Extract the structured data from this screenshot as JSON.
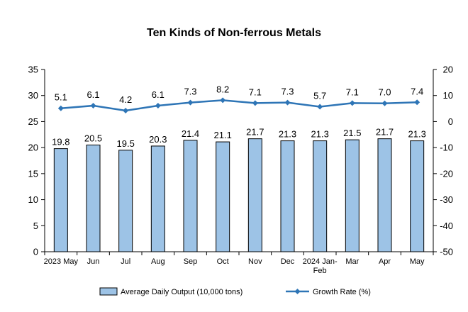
{
  "chart_data": {
    "type": "bar+line",
    "title": "Ten Kinds of Non-ferrous Metals",
    "categories": [
      [
        "2023 May"
      ],
      [
        "Jun"
      ],
      [
        "Jul"
      ],
      [
        "Aug"
      ],
      [
        "Sep"
      ],
      [
        "Oct"
      ],
      [
        "Nov"
      ],
      [
        "Dec"
      ],
      [
        "2024 Jan-",
        "Feb"
      ],
      [
        "Mar"
      ],
      [
        "Apr"
      ],
      [
        "May"
      ]
    ],
    "series": [
      {
        "name": "Average Daily Output (10,000 tons)",
        "type": "bar",
        "axis": "left",
        "values": [
          19.8,
          20.5,
          19.5,
          20.3,
          21.4,
          21.1,
          21.7,
          21.3,
          21.3,
          21.5,
          21.7,
          21.3
        ],
        "labels": [
          "19.8",
          "20.5",
          "19.5",
          "20.3",
          "21.4",
          "21.1",
          "21.7",
          "21.3",
          "21.3",
          "21.5",
          "21.7",
          "21.3"
        ],
        "color": "#9dc3e6",
        "stroke": "#000000"
      },
      {
        "name": "Growth Rate (%)",
        "type": "line",
        "axis": "right",
        "values": [
          5.1,
          6.1,
          4.2,
          6.1,
          7.3,
          8.2,
          7.1,
          7.3,
          5.7,
          7.1,
          7.0,
          7.4
        ],
        "labels": [
          "5.1",
          "6.1",
          "4.2",
          "6.1",
          "7.3",
          "8.2",
          "7.1",
          "7.3",
          "5.7",
          "7.1",
          "7.0",
          "7.4"
        ],
        "color": "#2e75b6"
      }
    ],
    "y_left": {
      "min": 0,
      "max": 35,
      "ticks": [
        "0",
        "5",
        "10",
        "15",
        "20",
        "25",
        "30",
        "35"
      ]
    },
    "y_right": {
      "min": -50,
      "max": 20,
      "ticks": [
        "-50",
        "-40",
        "-30",
        "-20",
        "-10",
        "0",
        "10",
        "20"
      ]
    },
    "grid": false,
    "legend_position": "bottom"
  }
}
